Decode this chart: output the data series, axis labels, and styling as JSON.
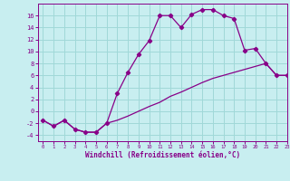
{
  "xlabel": "Windchill (Refroidissement éolien,°C)",
  "background_color": "#c8eef0",
  "grid_color": "#a0d8d8",
  "line_color": "#880088",
  "hours": [
    0,
    1,
    2,
    3,
    4,
    5,
    6,
    7,
    8,
    9,
    10,
    11,
    12,
    13,
    14,
    15,
    16,
    17,
    18,
    19,
    20,
    21,
    22,
    23
  ],
  "temp": [
    -1.5,
    -2.5,
    -1.5,
    -3.0,
    -3.5,
    -3.5,
    -2.0,
    3.0,
    6.5,
    9.5,
    11.8,
    16.0,
    16.0,
    14.0,
    16.2,
    17.0,
    17.0,
    16.0,
    15.5,
    10.2,
    10.5,
    8.0,
    6.0,
    6.0
  ],
  "windchill": [
    -1.5,
    -2.5,
    -1.5,
    -3.0,
    -3.5,
    -3.5,
    -2.0,
    -1.5,
    -0.8,
    0.0,
    0.8,
    1.5,
    2.5,
    3.2,
    4.0,
    4.8,
    5.5,
    6.0,
    6.5,
    7.0,
    7.5,
    8.0,
    6.0,
    6.0
  ],
  "ylim": [
    -5,
    18
  ],
  "xlim": [
    -0.5,
    23
  ],
  "yticks": [
    -4,
    -2,
    0,
    2,
    4,
    6,
    8,
    10,
    12,
    14,
    16
  ],
  "xticks": [
    0,
    1,
    2,
    3,
    4,
    5,
    6,
    7,
    8,
    9,
    10,
    11,
    12,
    13,
    14,
    15,
    16,
    17,
    18,
    19,
    20,
    21,
    22,
    23
  ]
}
